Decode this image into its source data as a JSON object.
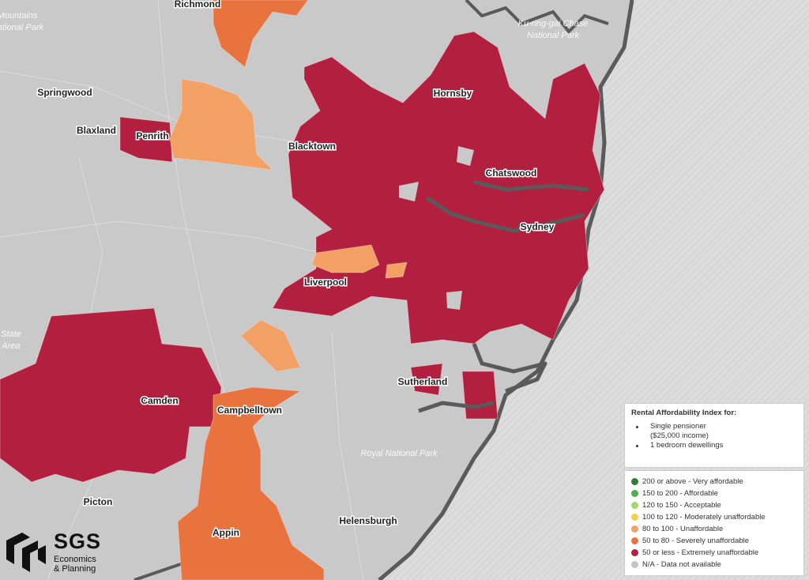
{
  "map": {
    "places": [
      "Richmond",
      "Springwood",
      "Blaxland",
      "Penrith",
      "Blacktown",
      "Hornsby",
      "Chatswood",
      "Sydney",
      "Liverpool",
      "Camden",
      "Campbelltown",
      "Sutherland",
      "Picton",
      "Appin",
      "Helensburgh"
    ],
    "parks": [
      "Mountains",
      "National Park",
      "Ku-ring-gai Chase",
      "National Park",
      "Royal National Park",
      "State",
      "Area"
    ]
  },
  "legend": {
    "title": "Rental Affordability Index for:",
    "criteria": [
      "Single pensioner",
      "($25,000 income)",
      "1 bedroom dewellings"
    ],
    "items": [
      {
        "label": "200 or above - Very affordable",
        "color": "#2e7d32"
      },
      {
        "label": "150 to 200 - Affordable",
        "color": "#4caf50"
      },
      {
        "label": "120 to 150 - Acceptable",
        "color": "#a5d86a"
      },
      {
        "label": "100 to 120 - Moderately unaffordable",
        "color": "#f2d04a"
      },
      {
        "label": "80 to 100 - Unaffordable",
        "color": "#f2a063"
      },
      {
        "label": "50 to 80 - Severely unaffordable",
        "color": "#e8733f"
      },
      {
        "label": "50 or less - Extremely unaffordable",
        "color": "#b31f3e"
      },
      {
        "label": "N/A - Data not available",
        "color": "#c4c4c4"
      }
    ]
  },
  "logo": {
    "name": "SGS",
    "subtitle": [
      "Economics",
      "& Planning"
    ]
  }
}
